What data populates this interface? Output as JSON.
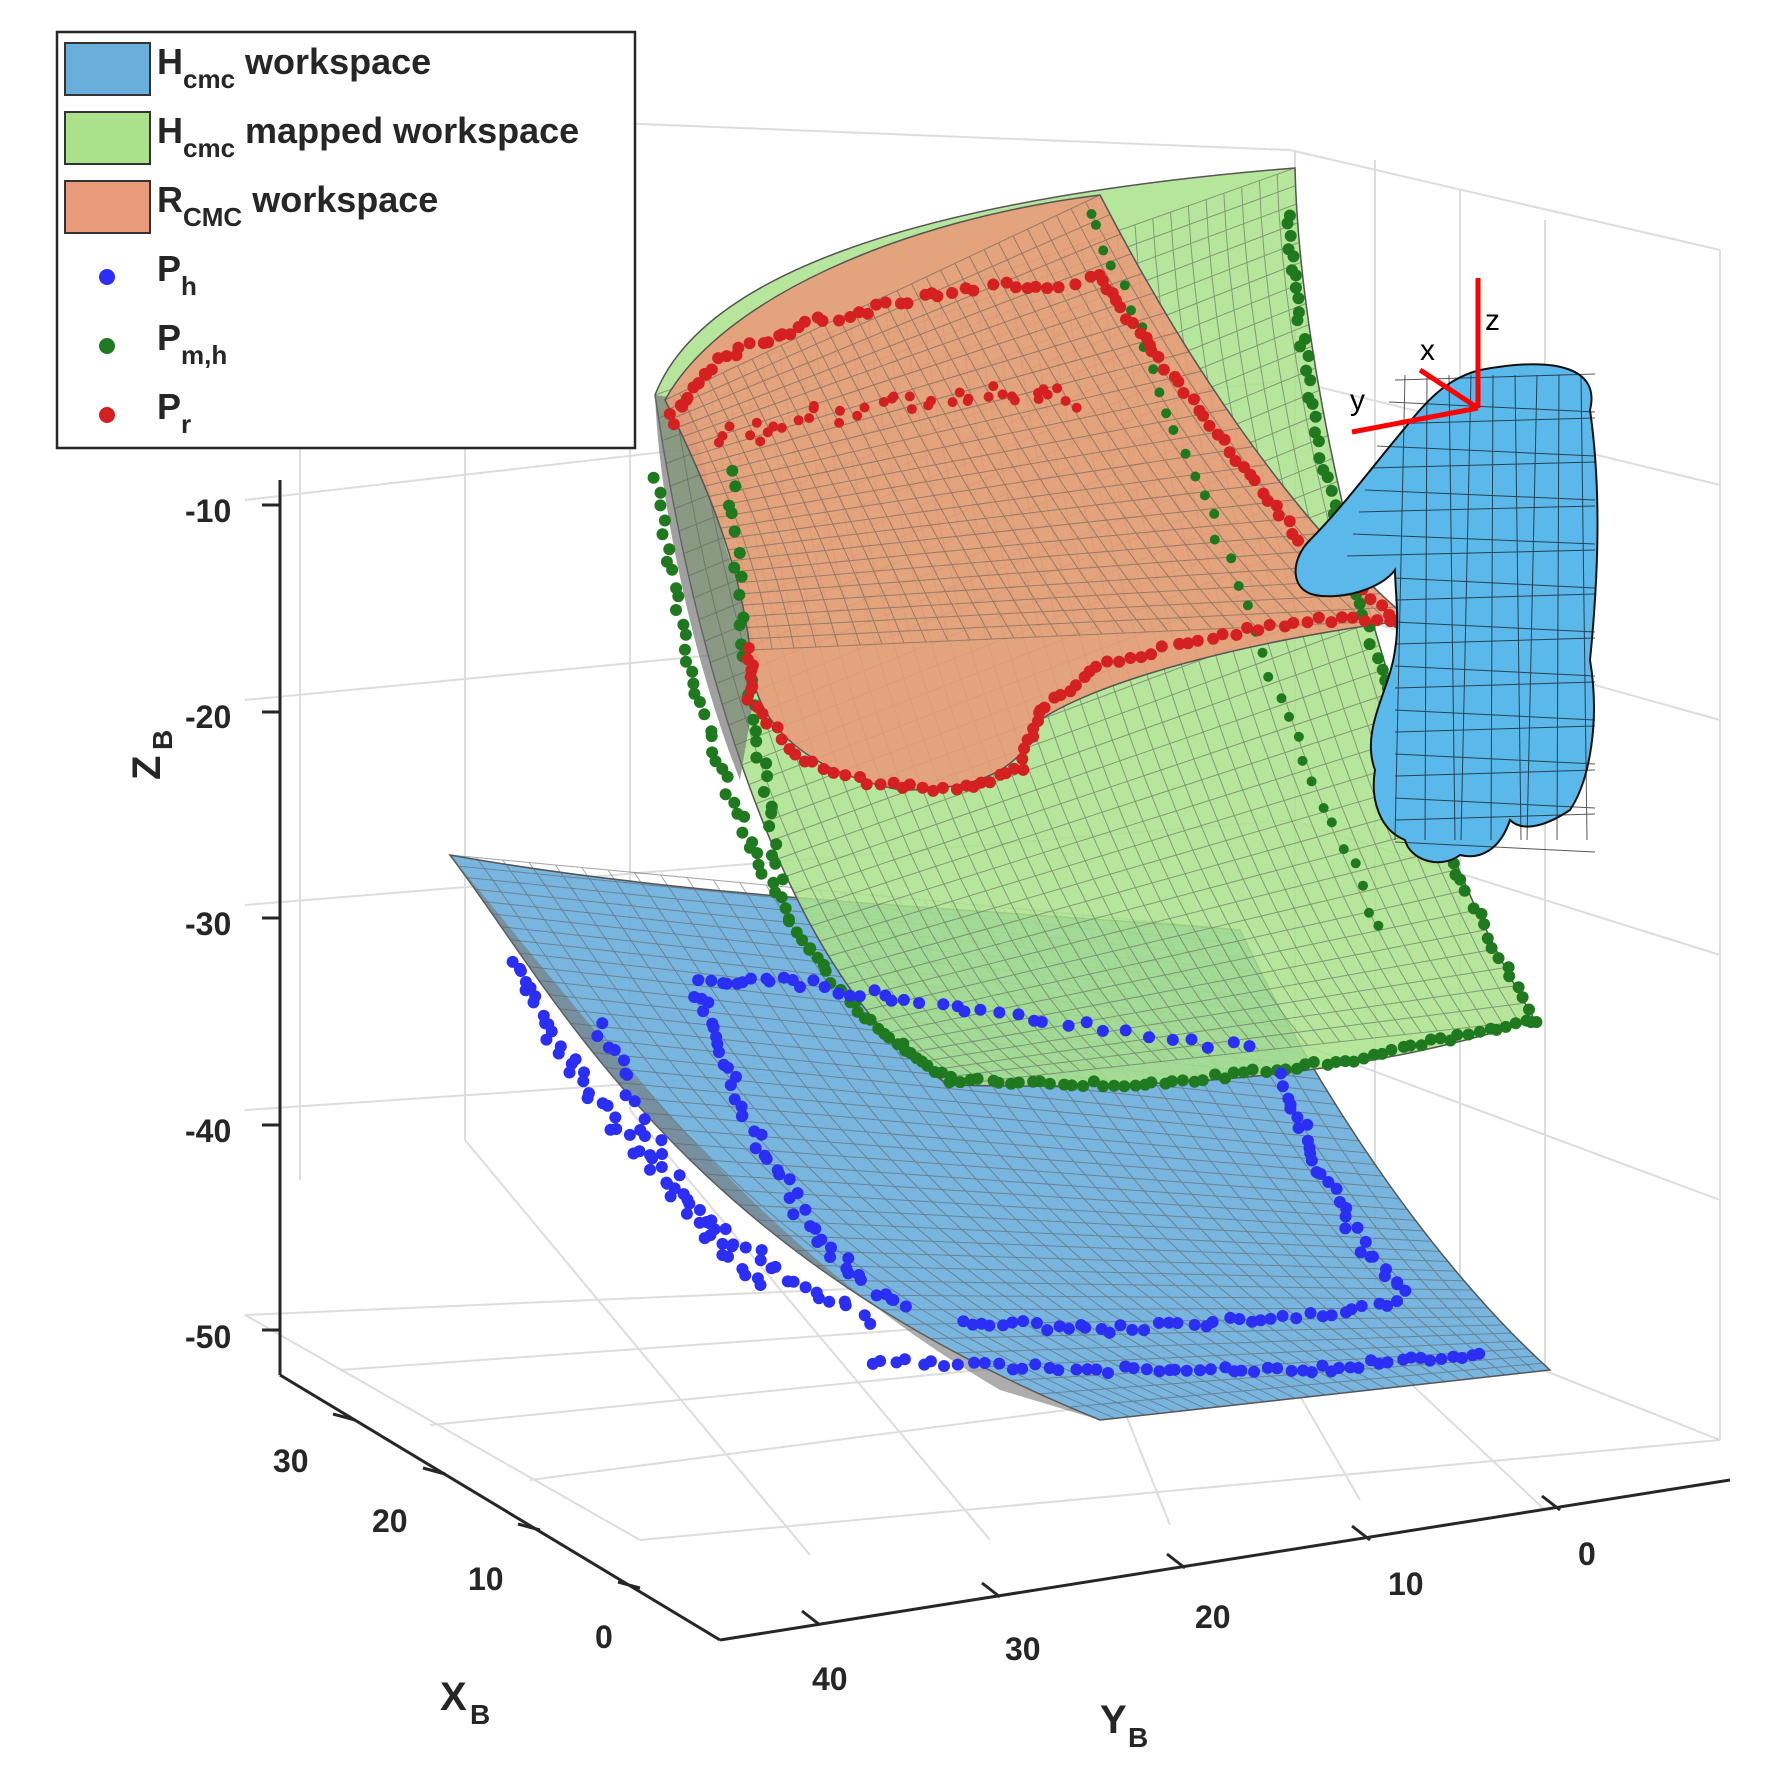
{
  "chart_data": {
    "type": "surface3d",
    "axes": {
      "x": {
        "label": "X",
        "label_sub": "B",
        "ticks": [
          "30",
          "20",
          "10",
          "0"
        ]
      },
      "y": {
        "label": "Y",
        "label_sub": "B",
        "ticks": [
          "40",
          "30",
          "20",
          "10",
          "0"
        ]
      },
      "z": {
        "label": "Z",
        "label_sub": "B",
        "ticks": [
          "-10",
          "-20",
          "-30",
          "-40",
          "-50"
        ]
      }
    },
    "grid": true,
    "legend": {
      "placement": "top-left",
      "entries": [
        {
          "main": "H",
          "sub": "cmc",
          "rest": " workspace",
          "color": "#6aaedb",
          "kind": "patch"
        },
        {
          "main": "H",
          "sub": "cmc",
          "rest": " mapped workspace",
          "color": "#a9e28a",
          "kind": "patch"
        },
        {
          "main": "R",
          "sub": "CMC",
          "rest": " workspace",
          "color": "#e99a78",
          "kind": "patch"
        },
        {
          "main": "P",
          "sub": "h",
          "rest": "",
          "color": "#2b2ef5",
          "kind": "marker"
        },
        {
          "main": "P",
          "sub": "m,h",
          "rest": "",
          "color": "#1f7a1f",
          "kind": "marker"
        },
        {
          "main": "P",
          "sub": "r",
          "rest": "",
          "color": "#d42020",
          "kind": "marker"
        }
      ]
    },
    "hand_frame": {
      "labels": [
        "x",
        "y",
        "z"
      ],
      "color": "#ff0000"
    },
    "colors": {
      "h_workspace": "#6aaedb",
      "mapped_workspace": "#a9e28a",
      "r_workspace": "#e99a78",
      "mesh": "#6e6e6e",
      "hand": "#5ab8ea"
    }
  }
}
